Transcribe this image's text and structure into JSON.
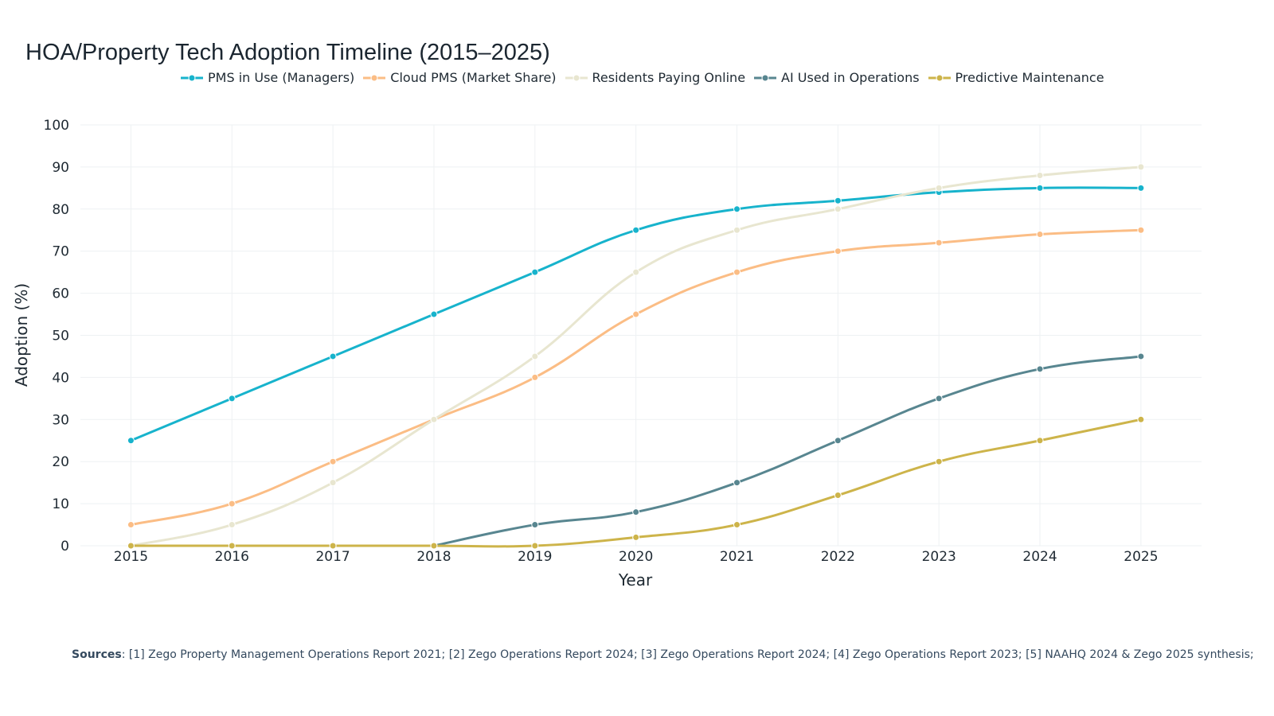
{
  "chart_data": {
    "type": "line",
    "title": "HOA/Property Tech Adoption Timeline (2015–2025)",
    "xlabel": "Year",
    "ylabel": "Adoption (%)",
    "x": [
      2015,
      2016,
      2017,
      2018,
      2019,
      2020,
      2021,
      2022,
      2023,
      2024,
      2025
    ],
    "x_tick_labels": [
      "2015",
      "2016",
      "2017",
      "2018",
      "2019",
      "2020",
      "2021",
      "2022",
      "2023",
      "2024",
      "2025"
    ],
    "y_tick_labels": [
      "0",
      "10",
      "20",
      "30",
      "40",
      "50",
      "60",
      "70",
      "80",
      "90",
      "100"
    ],
    "xlim": [
      2014.5,
      2025.6
    ],
    "ylim": [
      0,
      100
    ],
    "grid": true,
    "legend_position": "top",
    "series": [
      {
        "name": "PMS in Use (Managers)",
        "color": "#17b3cc",
        "values": [
          25,
          35,
          45,
          55,
          65,
          75,
          80,
          82,
          84,
          85,
          85
        ]
      },
      {
        "name": "Cloud PMS (Market Share)",
        "color": "#fbbd85",
        "values": [
          5,
          10,
          20,
          30,
          40,
          55,
          65,
          70,
          72,
          74,
          75
        ]
      },
      {
        "name": "Residents Paying Online",
        "color": "#e8e6d0",
        "values": [
          0,
          5,
          15,
          30,
          45,
          65,
          75,
          80,
          85,
          88,
          90
        ]
      },
      {
        "name": "AI Used in Operations",
        "color": "#588690",
        "values": [
          null,
          null,
          null,
          0,
          5,
          8,
          15,
          25,
          35,
          42,
          45
        ]
      },
      {
        "name": "Predictive Maintenance",
        "color": "#cdb44a",
        "values": [
          0,
          0,
          0,
          0,
          0,
          2,
          5,
          12,
          20,
          25,
          30
        ]
      }
    ]
  },
  "sources": {
    "label": "Sources",
    "text": ": [1] Zego Property Management Operations Report 2021; [2] Zego Operations Report 2024; [3] Zego Operations Report 2024; [4] Zego Operations Report 2023; [5] NAAHQ 2024 & Zego 2025 synthesis;"
  }
}
